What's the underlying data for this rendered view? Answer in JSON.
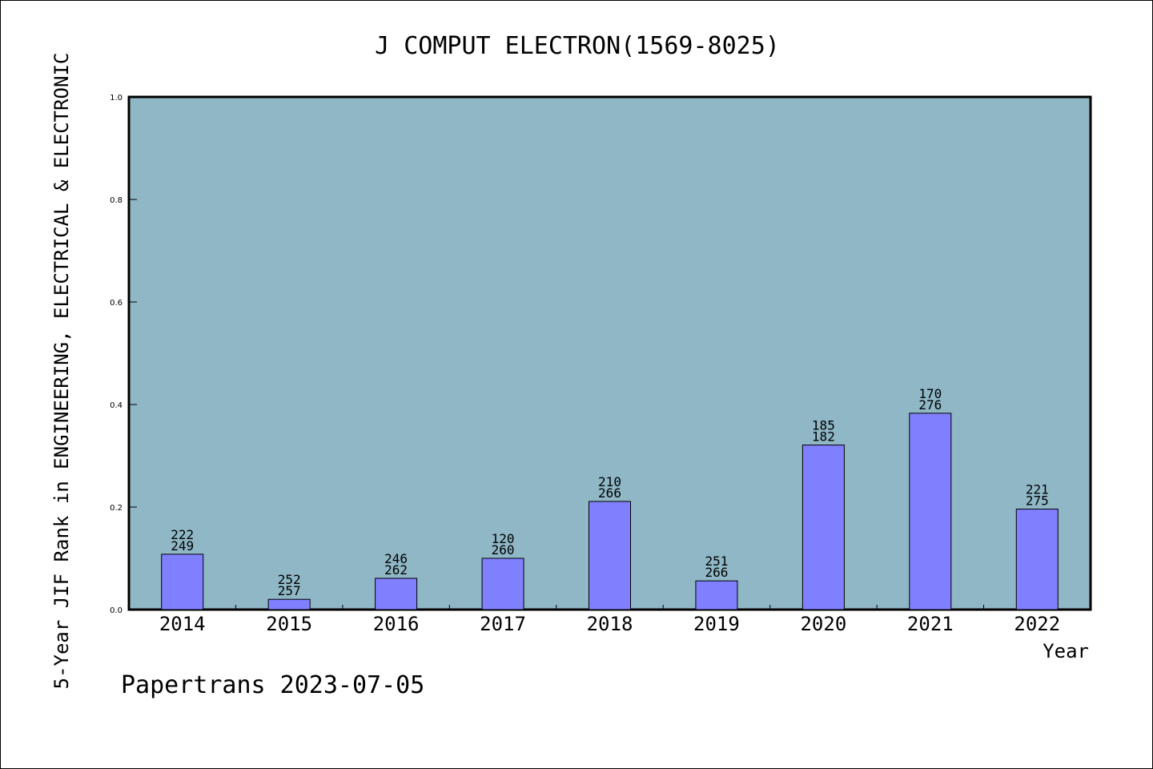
{
  "chart_data": {
    "type": "bar",
    "title": "J COMPUT ELECTRON(1569-8025)",
    "xlabel": "Year",
    "ylabel": "5-Year JIF Rank in ENGINEERING, ELECTRICAL & ELECTRONIC",
    "categories": [
      "2014",
      "2015",
      "2016",
      "2017",
      "2018",
      "2019",
      "2020",
      "2021",
      "2022"
    ],
    "values": [
      0.108,
      0.02,
      0.061,
      0.1,
      0.211,
      0.056,
      0.321,
      0.383,
      0.196
    ],
    "label_top": [
      "222",
      "252",
      "246",
      "120",
      "210",
      "251",
      "185",
      "170",
      "221"
    ],
    "label_bottom": [
      "249",
      "257",
      "262",
      "260",
      "266",
      "266",
      "182",
      "276",
      "275"
    ],
    "ylim": [
      0,
      1.0
    ],
    "yticks": [
      "0.0",
      "0.2",
      "0.4",
      "0.6",
      "0.8",
      "1.0"
    ],
    "grid": false,
    "colors": {
      "plot_background": "#8fb7c6",
      "bar_fill": "#8080ff",
      "bar_stroke": "#000000",
      "axis": "#000000"
    }
  },
  "footer": {
    "text": "Papertrans 2023-07-05"
  }
}
